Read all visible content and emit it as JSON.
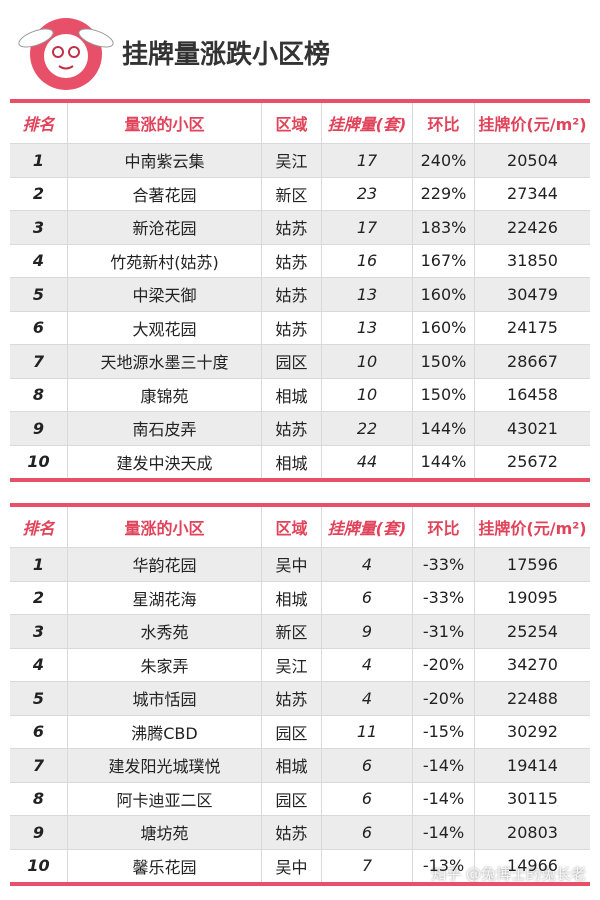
{
  "header": {
    "title": "挂牌量涨跌小区榜"
  },
  "tables": [
    {
      "columns": [
        "排名",
        "量涨的小区",
        "区域",
        "挂牌量(套)",
        "环比",
        "挂牌价(元/m²)"
      ],
      "rows": [
        [
          "1",
          "中南紫云集",
          "吴江",
          "17",
          "240%",
          "20504"
        ],
        [
          "2",
          "合著花园",
          "新区",
          "23",
          "229%",
          "27344"
        ],
        [
          "3",
          "新沧花园",
          "姑苏",
          "17",
          "183%",
          "22426"
        ],
        [
          "4",
          "竹苑新村(姑苏)",
          "姑苏",
          "16",
          "167%",
          "31850"
        ],
        [
          "5",
          "中梁天御",
          "姑苏",
          "13",
          "160%",
          "30479"
        ],
        [
          "6",
          "大观花园",
          "姑苏",
          "13",
          "160%",
          "24175"
        ],
        [
          "7",
          "天地源水墨三十度",
          "园区",
          "10",
          "150%",
          "28667"
        ],
        [
          "8",
          "康锦苑",
          "相城",
          "10",
          "150%",
          "16458"
        ],
        [
          "9",
          "南石皮弄",
          "姑苏",
          "22",
          "144%",
          "43021"
        ],
        [
          "10",
          "建发中泱天成",
          "相城",
          "44",
          "144%",
          "25672"
        ]
      ]
    },
    {
      "columns": [
        "排名",
        "量涨的小区",
        "区域",
        "挂牌量(套)",
        "环比",
        "挂牌价(元/m²)"
      ],
      "rows": [
        [
          "1",
          "华韵花园",
          "吴中",
          "4",
          "-33%",
          "17596"
        ],
        [
          "2",
          "星湖花海",
          "相城",
          "6",
          "-33%",
          "19095"
        ],
        [
          "3",
          "水秀苑",
          "新区",
          "9",
          "-31%",
          "25254"
        ],
        [
          "4",
          "朱家弄",
          "吴江",
          "4",
          "-20%",
          "34270"
        ],
        [
          "5",
          "城市恬园",
          "姑苏",
          "4",
          "-20%",
          "22488"
        ],
        [
          "6",
          "沸腾CBD",
          "园区",
          "11",
          "-15%",
          "30292"
        ],
        [
          "7",
          "建发阳光城璞悦",
          "相城",
          "6",
          "-14%",
          "19414"
        ],
        [
          "8",
          "阿卡迪亚二区",
          "园区",
          "6",
          "-14%",
          "30115"
        ],
        [
          "9",
          "塘坊苑",
          "姑苏",
          "6",
          "-14%",
          "20803"
        ],
        [
          "10",
          "馨乐花园",
          "吴中",
          "7",
          "-13%",
          "14966"
        ]
      ]
    }
  ],
  "watermark": "知乎 @兔博士的兔长老"
}
